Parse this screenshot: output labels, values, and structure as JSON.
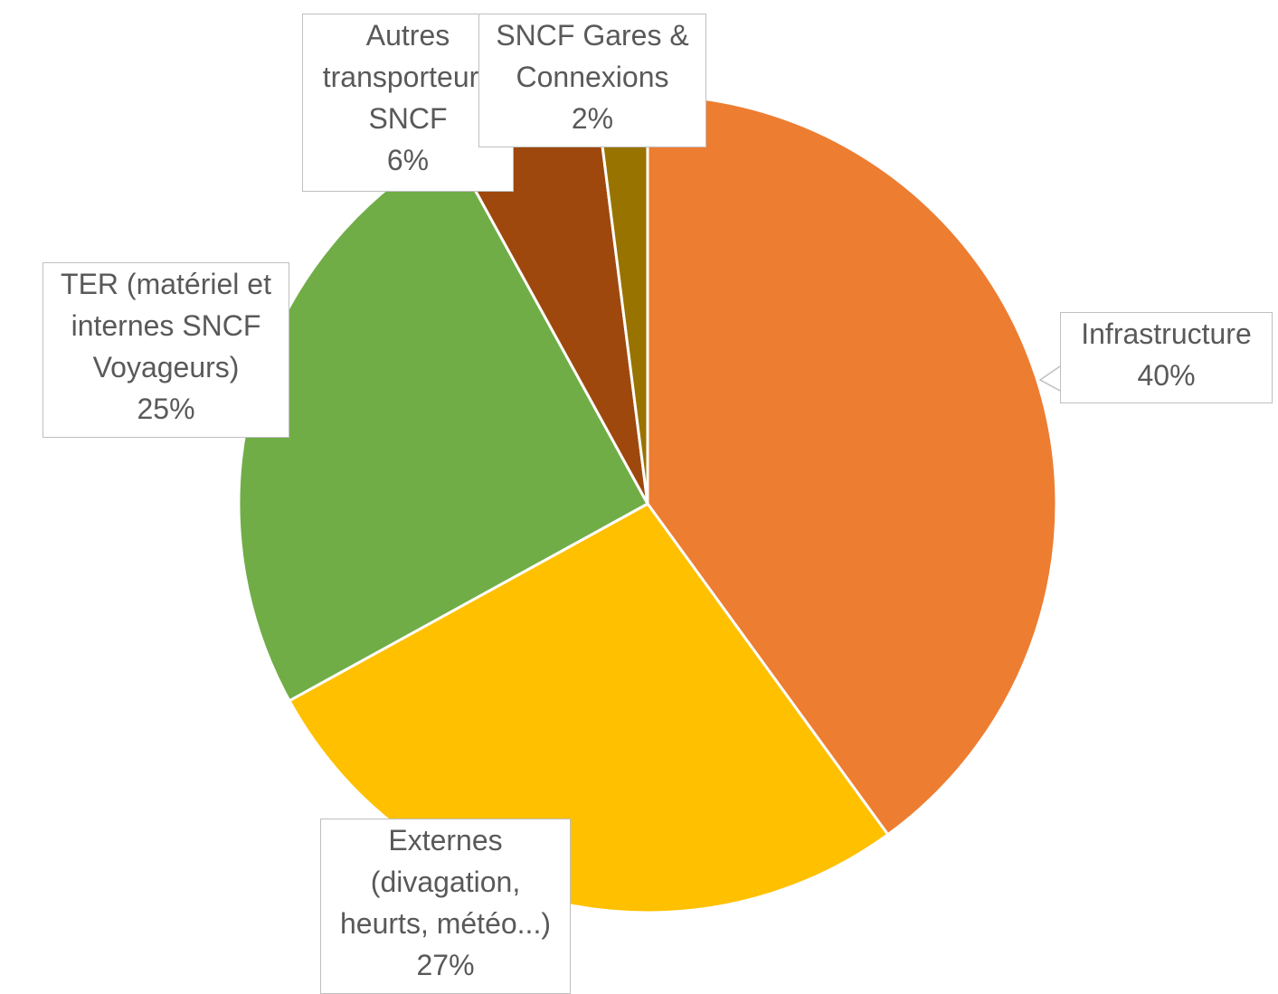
{
  "chart_data": {
    "type": "pie",
    "categories": [
      "Infrastructure",
      "Externes (divagation, heurts, météo...)",
      "TER (matériel et internes SNCF Voyageurs)",
      "Autres transporteurs SNCF",
      "SNCF Gares & Connexions"
    ],
    "values": [
      40,
      27,
      25,
      6,
      2
    ],
    "value_labels": [
      "40%",
      "27%",
      "25%",
      "6%",
      "2%"
    ],
    "colors": [
      "#ED7D31",
      "#FFC000",
      "#70AD47",
      "#9E480E",
      "#997300"
    ]
  }
}
